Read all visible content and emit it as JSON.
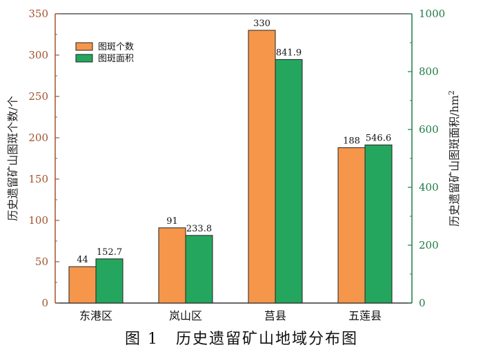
{
  "caption": {
    "figure_label": "图 1",
    "title": "历史遗留矿山地域分布图"
  },
  "chart_data": {
    "type": "bar",
    "categories": [
      "东港区",
      "岚山区",
      "莒县",
      "五莲县"
    ],
    "series": [
      {
        "name": "图斑个数",
        "axis": "left",
        "values": [
          44,
          91,
          330,
          188
        ],
        "labels": [
          "44",
          "91",
          "330",
          "188"
        ],
        "color": "#F5964A"
      },
      {
        "name": "图斑面积",
        "axis": "right",
        "values": [
          152.7,
          233.8,
          841.9,
          546.6
        ],
        "labels": [
          "152.7",
          "233.8",
          "841.9",
          "546.6"
        ],
        "color": "#25A65F"
      }
    ],
    "left_axis": {
      "label": "历史遗留矿山图斑个数/个",
      "ylim": [
        0,
        350
      ],
      "ticks": [
        "0",
        "50",
        "100",
        "150",
        "200",
        "250",
        "300",
        "350"
      ],
      "color": "#A0522D"
    },
    "right_axis": {
      "label": "历史遗留矿山图斑面积/hm",
      "label_superscript": "2",
      "ylim": [
        0,
        1000
      ],
      "ticks": [
        "0",
        "200",
        "400",
        "600",
        "800",
        "1000"
      ],
      "color": "#1E7B45"
    },
    "legend_position": "top-left",
    "grid": false
  }
}
